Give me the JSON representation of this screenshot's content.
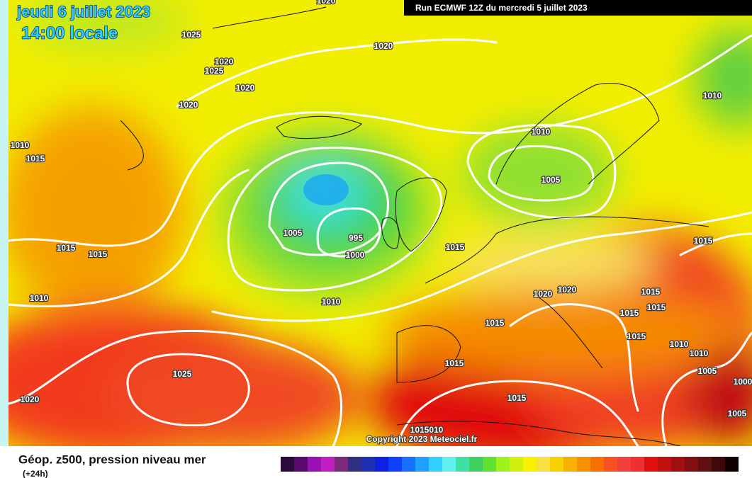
{
  "header": {
    "date": "jeudi 6 juillet 2023",
    "time": "14:00 locale",
    "run": "Run ECMWF 12Z du mercredi 5 juillet 2023"
  },
  "map": {
    "isobar_labels": [
      "1020",
      "1025",
      "1020",
      "1025",
      "1020",
      "1020",
      "1020",
      "1010",
      "1015",
      "1010",
      "1010",
      "1005",
      "1005",
      "995",
      "1000",
      "1015",
      "1015",
      "1015",
      "1010",
      "1015",
      "1010",
      "1020",
      "1020",
      "1015",
      "1015",
      "1015",
      "1015",
      "1015",
      "1010",
      "1010",
      "1015",
      "1005",
      "1025",
      "1020",
      "1015",
      "1000",
      "1005",
      "1015010"
    ],
    "copyright": "Copyright 2023 Meteociel.fr"
  },
  "legend": {
    "title": "Géop. z500, pression niveau mer",
    "subtitle": "(+24h)"
  }
}
